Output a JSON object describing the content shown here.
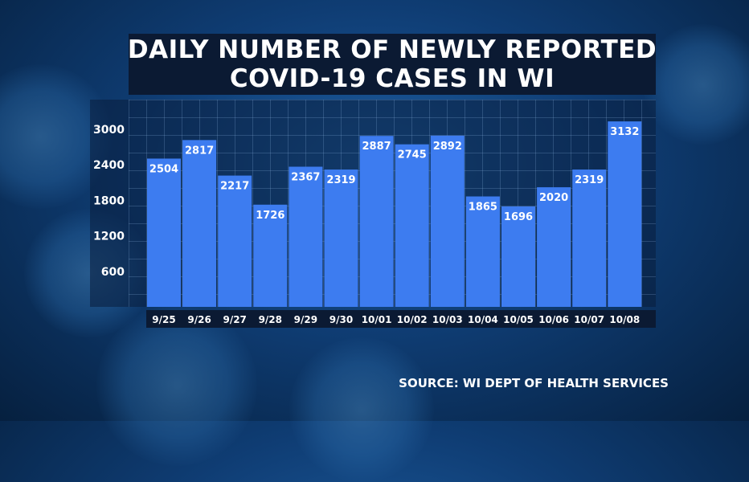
{
  "title_lines": [
    "DAILY NUMBER OF NEWLY REPORTED",
    "COVID-19 CASES IN WI"
  ],
  "source": "SOURCE: WI DEPT OF HEALTH SERVICES",
  "colors": {
    "bar": "#3d7cf0",
    "title_bg": "#0b1a33"
  },
  "chart_data": {
    "type": "bar",
    "title": "DAILY NUMBER OF NEWLY REPORTED COVID-19 CASES IN WI",
    "categories": [
      "9/25",
      "9/26",
      "9/27",
      "9/28",
      "9/29",
      "9/30",
      "10/01",
      "10/02",
      "10/03",
      "10/04",
      "10/05",
      "10/06",
      "10/07",
      "10/08"
    ],
    "values": [
      2504,
      2817,
      2217,
      1726,
      2367,
      2319,
      2887,
      2745,
      2892,
      1865,
      1696,
      2020,
      2319,
      3132
    ],
    "yticks": [
      600,
      1200,
      1800,
      2400,
      3000
    ],
    "ylim": [
      0,
      3500
    ],
    "grid": true,
    "data_labels": true
  }
}
